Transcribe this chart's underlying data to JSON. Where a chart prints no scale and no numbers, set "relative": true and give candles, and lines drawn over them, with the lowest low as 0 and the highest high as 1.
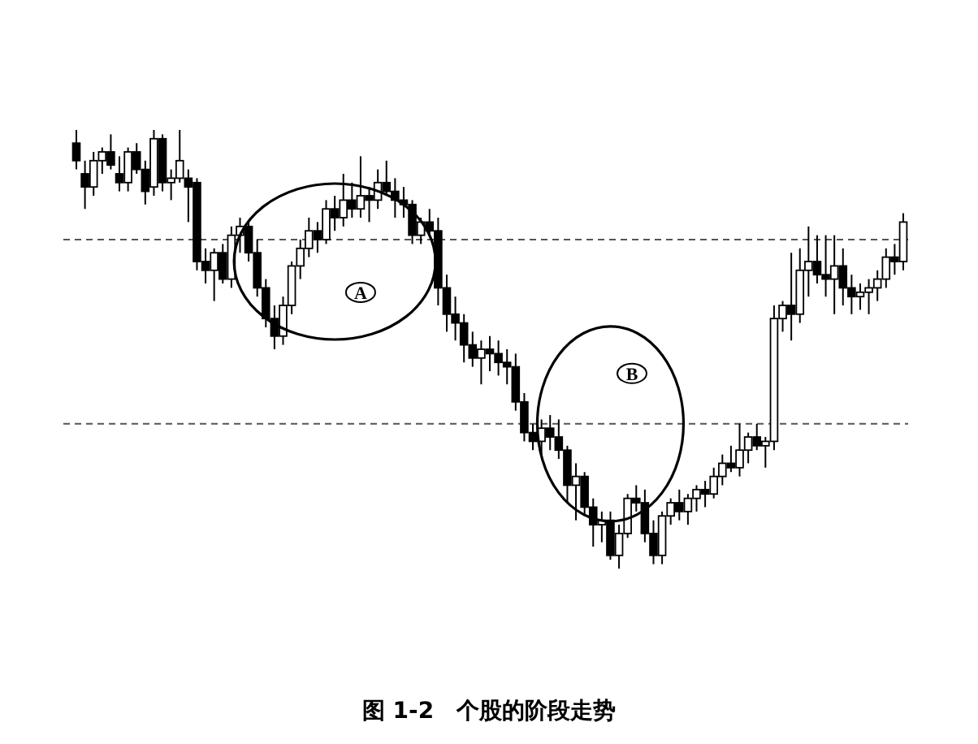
{
  "chart_data": {
    "type": "candlestick",
    "relative": true,
    "title": "图 1-2　个股的阶段走势",
    "categories": [
      null,
      null,
      null,
      null,
      null,
      null,
      null,
      null,
      null,
      null,
      null,
      null,
      null,
      null,
      null,
      null,
      null,
      null,
      null,
      null,
      null,
      null,
      null,
      null,
      null,
      null,
      null,
      null,
      null,
      null,
      null,
      null,
      null,
      null,
      null,
      null,
      null,
      null,
      null,
      null,
      null,
      null,
      null,
      null,
      null,
      null,
      null,
      null,
      null,
      null,
      null,
      null,
      null,
      null,
      null,
      null,
      null,
      null,
      null,
      null,
      null,
      null,
      null,
      null,
      null,
      null,
      null,
      null,
      null,
      null,
      null,
      null,
      null,
      null,
      null,
      null,
      null,
      null,
      null,
      null,
      null,
      null,
      null,
      null,
      null,
      null,
      null,
      null,
      null,
      null,
      null,
      null,
      null,
      null,
      null,
      null,
      null
    ],
    "ohlc": [
      [
        0.97,
        1.0,
        0.91,
        0.93
      ],
      [
        0.9,
        0.93,
        0.82,
        0.87
      ],
      [
        0.87,
        0.95,
        0.85,
        0.93
      ],
      [
        0.93,
        0.96,
        0.9,
        0.95
      ],
      [
        0.95,
        0.99,
        0.91,
        0.92
      ],
      [
        0.9,
        0.94,
        0.86,
        0.88
      ],
      [
        0.88,
        0.96,
        0.86,
        0.95
      ],
      [
        0.95,
        0.97,
        0.9,
        0.91
      ],
      [
        0.91,
        0.93,
        0.83,
        0.86
      ],
      [
        0.87,
        1.0,
        0.85,
        0.98
      ],
      [
        0.98,
        0.99,
        0.86,
        0.88
      ],
      [
        0.88,
        0.91,
        0.84,
        0.89
      ],
      [
        0.89,
        1.0,
        0.88,
        0.93
      ],
      [
        0.89,
        0.91,
        0.79,
        0.87
      ],
      [
        0.88,
        0.89,
        0.68,
        0.7
      ],
      [
        0.7,
        0.73,
        0.65,
        0.68
      ],
      [
        0.68,
        0.73,
        0.61,
        0.72
      ],
      [
        0.72,
        0.74,
        0.65,
        0.66
      ],
      [
        0.66,
        0.78,
        0.64,
        0.76
      ],
      [
        0.76,
        0.8,
        0.72,
        0.78
      ],
      [
        0.78,
        0.79,
        0.7,
        0.72
      ],
      [
        0.72,
        0.75,
        0.62,
        0.64
      ],
      [
        0.64,
        0.66,
        0.55,
        0.57
      ],
      [
        0.57,
        0.6,
        0.5,
        0.53
      ],
      [
        0.53,
        0.62,
        0.51,
        0.6
      ],
      [
        0.6,
        0.7,
        0.58,
        0.69
      ],
      [
        0.69,
        0.75,
        0.66,
        0.73
      ],
      [
        0.73,
        0.8,
        0.71,
        0.77
      ],
      [
        0.77,
        0.79,
        0.72,
        0.75
      ],
      [
        0.75,
        0.84,
        0.74,
        0.82
      ],
      [
        0.82,
        0.85,
        0.77,
        0.8
      ],
      [
        0.8,
        0.9,
        0.78,
        0.84
      ],
      [
        0.84,
        0.88,
        0.8,
        0.82
      ],
      [
        0.82,
        0.94,
        0.8,
        0.85
      ],
      [
        0.85,
        0.87,
        0.79,
        0.84
      ],
      [
        0.84,
        0.91,
        0.82,
        0.88
      ],
      [
        0.88,
        0.93,
        0.85,
        0.86
      ],
      [
        0.86,
        0.89,
        0.8,
        0.84
      ],
      [
        0.84,
        0.87,
        0.8,
        0.83
      ],
      [
        0.83,
        0.84,
        0.74,
        0.76
      ],
      [
        0.76,
        0.8,
        0.74,
        0.79
      ],
      [
        0.79,
        0.82,
        0.76,
        0.77
      ],
      [
        0.77,
        0.8,
        0.6,
        0.64
      ],
      [
        0.64,
        0.67,
        0.54,
        0.58
      ],
      [
        0.58,
        0.62,
        0.52,
        0.56
      ],
      [
        0.56,
        0.58,
        0.47,
        0.51
      ],
      [
        0.51,
        0.54,
        0.46,
        0.48
      ],
      [
        0.48,
        0.52,
        0.42,
        0.5
      ],
      [
        0.5,
        0.53,
        0.45,
        0.49
      ],
      [
        0.49,
        0.52,
        0.44,
        0.47
      ],
      [
        0.47,
        0.5,
        0.42,
        0.46
      ],
      [
        0.46,
        0.49,
        0.36,
        0.38
      ],
      [
        0.38,
        0.4,
        0.29,
        0.31
      ],
      [
        0.31,
        0.33,
        0.27,
        0.29
      ],
      [
        0.29,
        0.34,
        0.26,
        0.32
      ],
      [
        0.32,
        0.35,
        0.27,
        0.3
      ],
      [
        0.3,
        0.34,
        0.25,
        0.27
      ],
      [
        0.27,
        0.28,
        0.15,
        0.19
      ],
      [
        0.19,
        0.24,
        0.11,
        0.21
      ],
      [
        0.21,
        0.22,
        0.12,
        0.14
      ],
      [
        0.14,
        0.16,
        0.05,
        0.1
      ],
      [
        0.1,
        0.13,
        0.06,
        0.11
      ],
      [
        0.11,
        0.13,
        0.02,
        0.03
      ],
      [
        0.03,
        0.1,
        0.0,
        0.08
      ],
      [
        0.08,
        0.17,
        0.07,
        0.16
      ],
      [
        0.16,
        0.19,
        0.13,
        0.15
      ],
      [
        0.15,
        0.18,
        0.06,
        0.08
      ],
      [
        0.08,
        0.11,
        0.01,
        0.03
      ],
      [
        0.03,
        0.13,
        0.01,
        0.12
      ],
      [
        0.12,
        0.16,
        0.1,
        0.15
      ],
      [
        0.15,
        0.18,
        0.11,
        0.13
      ],
      [
        0.13,
        0.17,
        0.1,
        0.16
      ],
      [
        0.16,
        0.19,
        0.13,
        0.18
      ],
      [
        0.18,
        0.2,
        0.14,
        0.17
      ],
      [
        0.17,
        0.23,
        0.16,
        0.21
      ],
      [
        0.21,
        0.26,
        0.19,
        0.24
      ],
      [
        0.24,
        0.28,
        0.22,
        0.23
      ],
      [
        0.23,
        0.33,
        0.21,
        0.27
      ],
      [
        0.27,
        0.31,
        0.24,
        0.3
      ],
      [
        0.3,
        0.33,
        0.27,
        0.28
      ],
      [
        0.28,
        0.3,
        0.23,
        0.29
      ],
      [
        0.29,
        0.6,
        0.27,
        0.57
      ],
      [
        0.57,
        0.61,
        0.54,
        0.6
      ],
      [
        0.6,
        0.72,
        0.52,
        0.58
      ],
      [
        0.58,
        0.73,
        0.56,
        0.68
      ],
      [
        0.68,
        0.78,
        0.62,
        0.7
      ],
      [
        0.7,
        0.76,
        0.65,
        0.67
      ],
      [
        0.67,
        0.76,
        0.62,
        0.66
      ],
      [
        0.66,
        0.76,
        0.58,
        0.69
      ],
      [
        0.69,
        0.73,
        0.6,
        0.64
      ],
      [
        0.64,
        0.67,
        0.58,
        0.62
      ],
      [
        0.62,
        0.65,
        0.59,
        0.63
      ],
      [
        0.63,
        0.66,
        0.58,
        0.64
      ],
      [
        0.64,
        0.68,
        0.61,
        0.66
      ],
      [
        0.66,
        0.73,
        0.64,
        0.71
      ],
      [
        0.71,
        0.74,
        0.67,
        0.7
      ],
      [
        0.7,
        0.81,
        0.68,
        0.79
      ]
    ],
    "ref_lines": [
      {
        "axis": "y",
        "value": 0.75,
        "line_style": "dashed",
        "color": "#555555"
      },
      {
        "axis": "y",
        "value": 0.33,
        "line_style": "dashed",
        "color": "#555555"
      }
    ],
    "annotations": [
      "A",
      "B"
    ],
    "grid": false
  }
}
